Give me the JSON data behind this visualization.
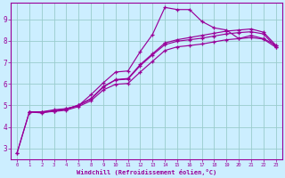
{
  "xlabel": "Windchill (Refroidissement éolien,°C)",
  "bg_color": "#cceeff",
  "line_color": "#990099",
  "grid_color": "#99cccc",
  "tick_labels": [
    "0",
    "1",
    "2",
    "3",
    "4",
    "5",
    "8",
    "9",
    "10",
    "11",
    "12",
    "13",
    "14",
    "15",
    "16",
    "17",
    "18",
    "19",
    "20",
    "21",
    "22",
    "23"
  ],
  "yticks": [
    3,
    4,
    5,
    6,
    7,
    8,
    9
  ],
  "ylim": [
    2.5,
    9.75
  ],
  "line1_idx": [
    0,
    1,
    2,
    3,
    4,
    5,
    6,
    7,
    8,
    9,
    10,
    11,
    12,
    13,
    14,
    15,
    16,
    17,
    18,
    19,
    20,
    21
  ],
  "line1_y": [
    2.8,
    4.7,
    4.7,
    4.8,
    4.85,
    5.0,
    5.5,
    6.05,
    6.55,
    6.6,
    7.5,
    8.3,
    9.55,
    9.45,
    9.45,
    8.9,
    8.6,
    8.5,
    8.1,
    8.25,
    8.1,
    7.8
  ],
  "line2_idx": [
    0,
    1,
    2,
    3,
    4,
    5,
    6,
    7,
    8,
    9,
    10,
    11,
    12,
    13,
    14,
    15,
    16,
    17,
    18,
    19,
    20,
    21
  ],
  "line2_y": [
    2.8,
    4.7,
    4.65,
    4.75,
    4.85,
    5.0,
    5.3,
    5.85,
    6.2,
    6.25,
    6.9,
    7.4,
    7.9,
    8.05,
    8.15,
    8.25,
    8.35,
    8.45,
    8.5,
    8.55,
    8.4,
    7.8
  ],
  "line3_idx": [
    1,
    2,
    3,
    4,
    5,
    6,
    7,
    8,
    9,
    10,
    11,
    12,
    13,
    14,
    15,
    16,
    17,
    18,
    19,
    20,
    21
  ],
  "line3_y": [
    4.7,
    4.7,
    4.75,
    4.82,
    5.02,
    5.32,
    5.88,
    6.18,
    6.22,
    6.85,
    7.35,
    7.82,
    7.98,
    8.05,
    8.12,
    8.22,
    8.32,
    8.38,
    8.42,
    8.32,
    7.72
  ],
  "line4_idx": [
    1,
    2,
    3,
    4,
    5,
    6,
    7,
    8,
    9,
    10,
    11,
    12,
    13,
    14,
    15,
    16,
    17,
    18,
    19,
    20,
    21
  ],
  "line4_y": [
    4.7,
    4.68,
    4.72,
    4.78,
    4.95,
    5.22,
    5.72,
    5.98,
    6.02,
    6.55,
    7.05,
    7.55,
    7.72,
    7.78,
    7.85,
    7.95,
    8.05,
    8.1,
    8.15,
    8.08,
    7.7
  ]
}
